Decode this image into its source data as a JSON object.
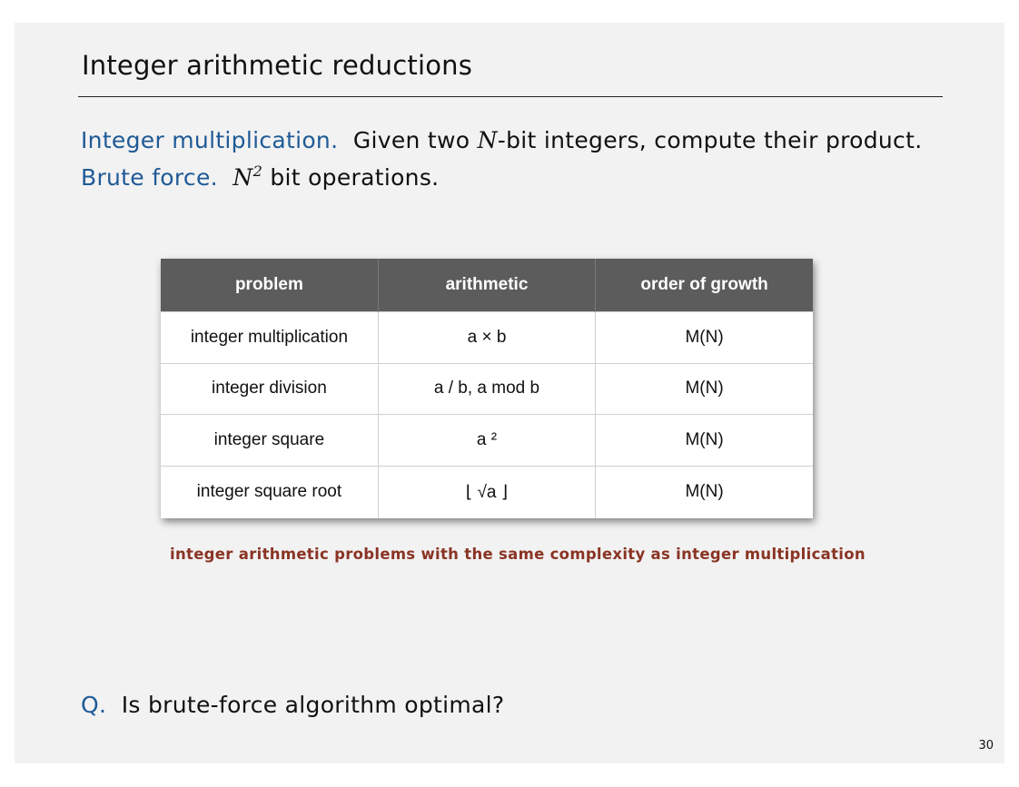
{
  "slide": {
    "title": "Integer arithmetic reductions",
    "line1": {
      "label": "Integer multiplication.",
      "text_before": "Given two ",
      "var": "N",
      "text_after": "-bit integers, compute their product."
    },
    "line2": {
      "label": "Brute force.",
      "var": "N",
      "sup": "2",
      "text_after": " bit operations."
    },
    "table": {
      "headers": [
        "problem",
        "arithmetic",
        "order of growth"
      ],
      "rows": [
        [
          "integer multiplication",
          "a × b",
          "M(N)"
        ],
        [
          "integer division",
          "a / b,  a mod b",
          "M(N)"
        ],
        [
          "integer square",
          "a ²",
          "M(N)"
        ],
        [
          "integer square root",
          "⌊ √a ⌋",
          "M(N)"
        ]
      ]
    },
    "caption": "integer arithmetic problems with the same complexity as integer multiplication",
    "question": {
      "label": "Q.",
      "text": "Is brute-force algorithm optimal?"
    },
    "page_number": "30"
  },
  "colors": {
    "accent_blue": "#1f5a96",
    "caption_red": "#8a3424",
    "header_gray": "#5c5c5c",
    "slide_bg": "#f2f2f2"
  }
}
